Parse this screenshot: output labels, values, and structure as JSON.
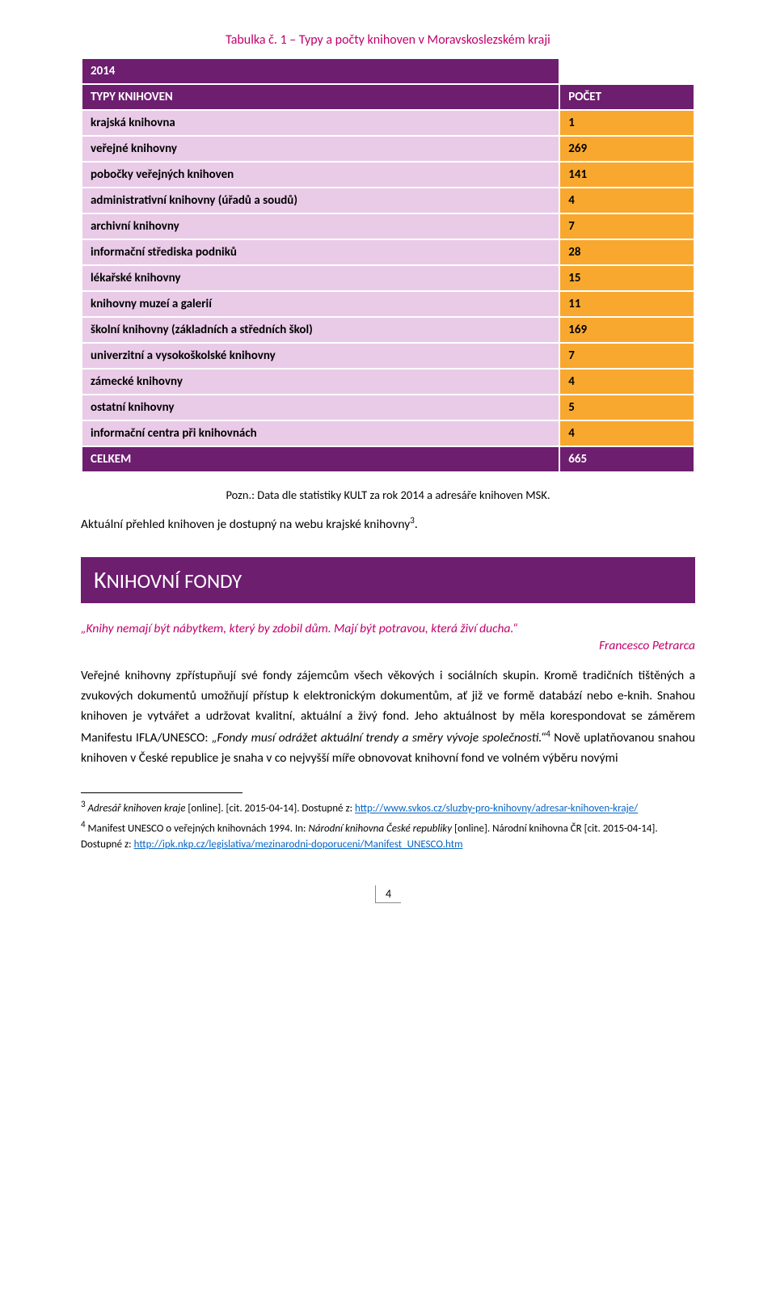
{
  "colors": {
    "banner_bg": "#6d1e6f",
    "banner_text": "#ffffff",
    "row_label_bg": "#e9cbe8",
    "row_value_bg": "#f8a82e",
    "accent_text": "#c0006b",
    "link": "#0563c1",
    "body_text": "#000000",
    "page_bg": "#ffffff",
    "cell_border": "#ffffff"
  },
  "typography": {
    "body_font": "Calibri",
    "body_size_pt": 11.5,
    "banner_size_pt": 22,
    "footnote_size_pt": 9.5
  },
  "caption": "Tabulka č. 1 – Typy a počty knihoven v Moravskoslezském kraji",
  "table": {
    "year": "2014",
    "header_label": "TYPY KNIHOVEN",
    "header_count": "POČET",
    "rows": [
      {
        "label": "krajská knihovna",
        "value": "1"
      },
      {
        "label": "veřejné knihovny",
        "value": "269"
      },
      {
        "label": "pobočky veřejných knihoven",
        "value": "141"
      },
      {
        "label": "administrativní knihovny (úřadů a soudů)",
        "value": "4"
      },
      {
        "label": "archivní knihovny",
        "value": "7"
      },
      {
        "label": "informační střediska podniků",
        "value": "28"
      },
      {
        "label": "lékařské knihovny",
        "value": "15"
      },
      {
        "label": "knihovny muzeí a galerií",
        "value": "11"
      },
      {
        "label": "školní knihovny (základních a středních škol)",
        "value": "169"
      },
      {
        "label": "univerzitní a vysokoškolské knihovny",
        "value": "7"
      },
      {
        "label": "zámecké knihovny",
        "value": "4"
      },
      {
        "label": "ostatní knihovny",
        "value": "5"
      },
      {
        "label": "informační centra při knihovnách",
        "value": "4"
      }
    ],
    "footer_label": "CELKEM",
    "footer_value": "665"
  },
  "note": "Pozn.: Data dle statistiky KULT za rok 2014 a adresáře knihoven MSK.",
  "intro_line": "Aktuální přehled knihoven je dostupný na webu krajské knihovny",
  "intro_sup": "3",
  "intro_end": ".",
  "section_title_big": "K",
  "section_title_rest": "NIHOVNÍ FONDY",
  "quote": "„Knihy nemají být nábytkem, který by zdobil dům. Mají být potravou, která živí ducha.“",
  "quote_author": "Francesco Petrarca",
  "main_paragraph_parts": {
    "p1": "Veřejné knihovny zpřístupňují své fondy zájemcům všech věkových i sociálních skupin. Kromě tradičních tištěných a zvukových dokumentů umožňují přístup k elektronickým dokumentům, ať již ve formě databází nebo e-knih. Snahou knihoven je vytvářet a udržovat kvalitní, aktuální a živý fond. Jeho aktuálnost by měla korespondovat se záměrem Manifestu IFLA/UNESCO: ",
    "italic1": "„Fondy musí odrážet aktuální trendy a směry vývoje společnosti.“",
    "sup": "4",
    "p2": " Nově uplatňovanou snahou knihoven v České republice je snaha v co nejvyšší míře obnovovat knihovní fond ve volném výběru novými"
  },
  "footnotes": {
    "f3_sup": "3",
    "f3_italic": "Adresář knihoven kraje",
    "f3_text": " [online]. [cit. 2015-04-14]. Dostupné z: ",
    "f3_link": "http://www.svkos.cz/sluzby-pro-knihovny/adresar-knihoven-kraje/",
    "f4_sup": "4",
    "f4_text1": " Manifest UNESCO o veřejných knihovnách 1994. In: ",
    "f4_italic": "Národní knihovna České republiky",
    "f4_text2": " [online]. Národní knihovna ČR [cit. 2015-04-14]. Dostupné z: ",
    "f4_link": "http://ipk.nkp.cz/legislativa/mezinarodni-doporuceni/Manifest_UNESCO.htm"
  },
  "page_number": "4"
}
